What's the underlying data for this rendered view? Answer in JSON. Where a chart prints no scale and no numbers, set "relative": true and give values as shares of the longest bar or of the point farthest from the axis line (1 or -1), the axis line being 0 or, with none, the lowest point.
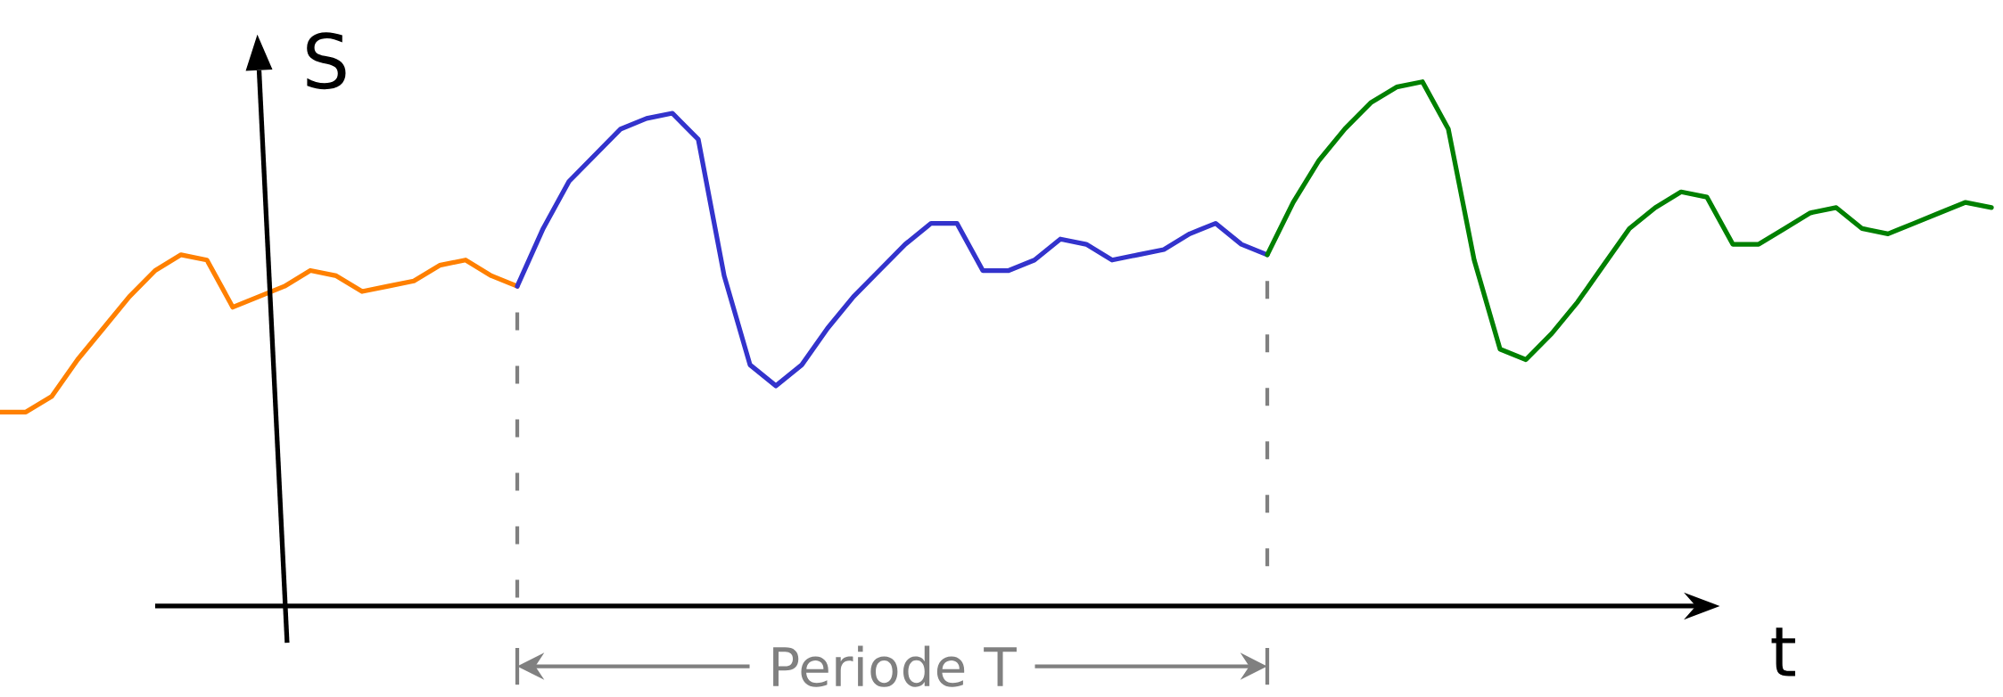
{
  "chart_data": {
    "type": "line",
    "relative": true,
    "xlabel": "t",
    "ylabel": "S",
    "marker": "none",
    "annotations": [
      "Periode T"
    ],
    "categories": [
      null,
      null,
      null,
      null,
      null,
      null,
      null,
      null,
      null,
      null,
      null,
      null,
      null,
      null,
      null,
      null,
      null,
      null,
      null,
      null,
      null,
      null,
      null,
      null,
      null,
      null,
      null,
      null,
      null,
      null,
      null,
      null,
      null,
      null,
      null,
      null,
      null,
      null,
      null,
      null,
      null,
      null,
      null,
      null,
      null,
      null,
      null,
      null,
      null,
      null,
      null,
      null,
      null,
      null,
      null,
      null,
      null,
      null,
      null,
      null,
      null,
      null,
      null,
      null,
      null,
      null,
      null,
      null,
      null,
      null,
      null,
      null,
      null,
      null,
      null,
      null,
      null,
      null
    ],
    "series": [
      {
        "color": "#ff8000",
        "values": [
          0.37,
          0.37,
          0.4,
          0.47,
          0.53,
          0.59,
          0.64,
          0.67,
          0.66,
          0.57,
          0.59,
          0.61,
          0.64,
          0.63,
          0.6,
          0.61,
          0.62,
          0.65,
          0.66,
          0.63,
          0.61,
          null,
          null,
          null,
          null,
          null,
          null,
          null,
          null,
          null,
          null,
          null,
          null,
          null,
          null,
          null,
          null,
          null,
          null,
          null,
          null,
          null,
          null,
          null,
          null,
          null,
          null,
          null,
          null,
          null,
          null,
          null,
          null,
          null,
          null,
          null,
          null,
          null,
          null,
          null,
          null,
          null,
          null,
          null,
          null,
          null,
          null,
          null,
          null,
          null,
          null,
          null,
          null,
          null,
          null,
          null,
          null,
          null
        ]
      },
      {
        "color": "#3333cc",
        "values": [
          null,
          null,
          null,
          null,
          null,
          null,
          null,
          null,
          null,
          null,
          null,
          null,
          null,
          null,
          null,
          null,
          null,
          null,
          null,
          null,
          0.61,
          0.72,
          0.81,
          0.86,
          0.91,
          0.93,
          0.94,
          0.89,
          0.63,
          0.46,
          0.42,
          0.46,
          0.53,
          0.59,
          0.64,
          0.69,
          0.73,
          0.73,
          0.64,
          0.64,
          0.66,
          0.7,
          0.69,
          0.66,
          0.67,
          0.68,
          0.71,
          0.73,
          0.69,
          0.67,
          null,
          null,
          null,
          null,
          null,
          null,
          null,
          null,
          null,
          null,
          null,
          null,
          null,
          null,
          null,
          null,
          null,
          null,
          null,
          null,
          null,
          null,
          null,
          null,
          null,
          null,
          null,
          null
        ]
      },
      {
        "color": "#008000",
        "values": [
          null,
          null,
          null,
          null,
          null,
          null,
          null,
          null,
          null,
          null,
          null,
          null,
          null,
          null,
          null,
          null,
          null,
          null,
          null,
          null,
          null,
          null,
          null,
          null,
          null,
          null,
          null,
          null,
          null,
          null,
          null,
          null,
          null,
          null,
          null,
          null,
          null,
          null,
          null,
          null,
          null,
          null,
          null,
          null,
          null,
          null,
          null,
          null,
          null,
          0.67,
          0.77,
          0.85,
          0.91,
          0.96,
          0.99,
          1.0,
          0.91,
          0.66,
          0.49,
          0.47,
          0.52,
          0.58,
          0.65,
          0.72,
          0.76,
          0.79,
          0.78,
          0.69,
          0.69,
          0.72,
          0.75,
          0.76,
          0.72,
          0.71,
          0.73,
          0.75,
          0.77,
          0.76
        ]
      }
    ]
  }
}
